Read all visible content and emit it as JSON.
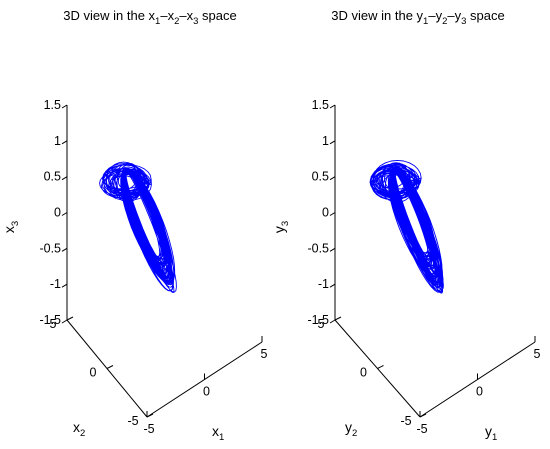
{
  "chart_data": [
    {
      "type": "line3d",
      "title": {
        "pre": "3D view in the ",
        "sym": "x",
        "subs": [
          "1",
          "2",
          "3"
        ],
        "post": " space"
      },
      "xlabel": {
        "sym": "x",
        "sub": "1"
      },
      "ylabel": {
        "sym": "x",
        "sub": "2"
      },
      "zlabel": {
        "sym": "x",
        "sub": "3"
      },
      "xlim": [
        -5,
        5
      ],
      "ylim": [
        -5,
        5
      ],
      "zlim": [
        -1.5,
        1.5
      ],
      "xticks": [
        "-5",
        "0",
        "5"
      ],
      "yticks": [
        "-5",
        "0",
        "5"
      ],
      "zticks": [
        "-1.5",
        "-1",
        "-0.5",
        "0",
        "0.5",
        "1",
        "1.5"
      ],
      "zticks_values": [
        -1.5,
        -1,
        -0.5,
        0,
        0.5,
        1,
        1.5
      ],
      "line_color": "#0000ff",
      "series": [
        {
          "description": "chaotic attractor trajectory, x1 roughly -1.5..2, x2 roughly -2..1.5, x3 roughly -1.1..0.65"
        }
      ]
    },
    {
      "type": "line3d",
      "title": {
        "pre": "3D view in the ",
        "sym": "y",
        "subs": [
          "1",
          "2",
          "3"
        ],
        "post": " space"
      },
      "xlabel": {
        "sym": "y",
        "sub": "1"
      },
      "ylabel": {
        "sym": "y",
        "sub": "2"
      },
      "zlabel": {
        "sym": "y",
        "sub": "3"
      },
      "xlim": [
        -5,
        5
      ],
      "ylim": [
        -5,
        5
      ],
      "zlim": [
        -1.5,
        1.5
      ],
      "xticks": [
        "-5",
        "0",
        "5"
      ],
      "yticks": [
        "-5",
        "0",
        "5"
      ],
      "zticks": [
        "-1.5",
        "-1",
        "-0.5",
        "0",
        "0.5",
        "1",
        "1.5"
      ],
      "zticks_values": [
        -1.5,
        -1,
        -0.5,
        0,
        0.5,
        1,
        1.5
      ],
      "line_color": "#0000ff",
      "series": [
        {
          "description": "chaotic attractor trajectory, y1 roughly -1.5..2, y2 roughly -2..1.5, y3 roughly -1.1..0.65"
        }
      ]
    }
  ]
}
